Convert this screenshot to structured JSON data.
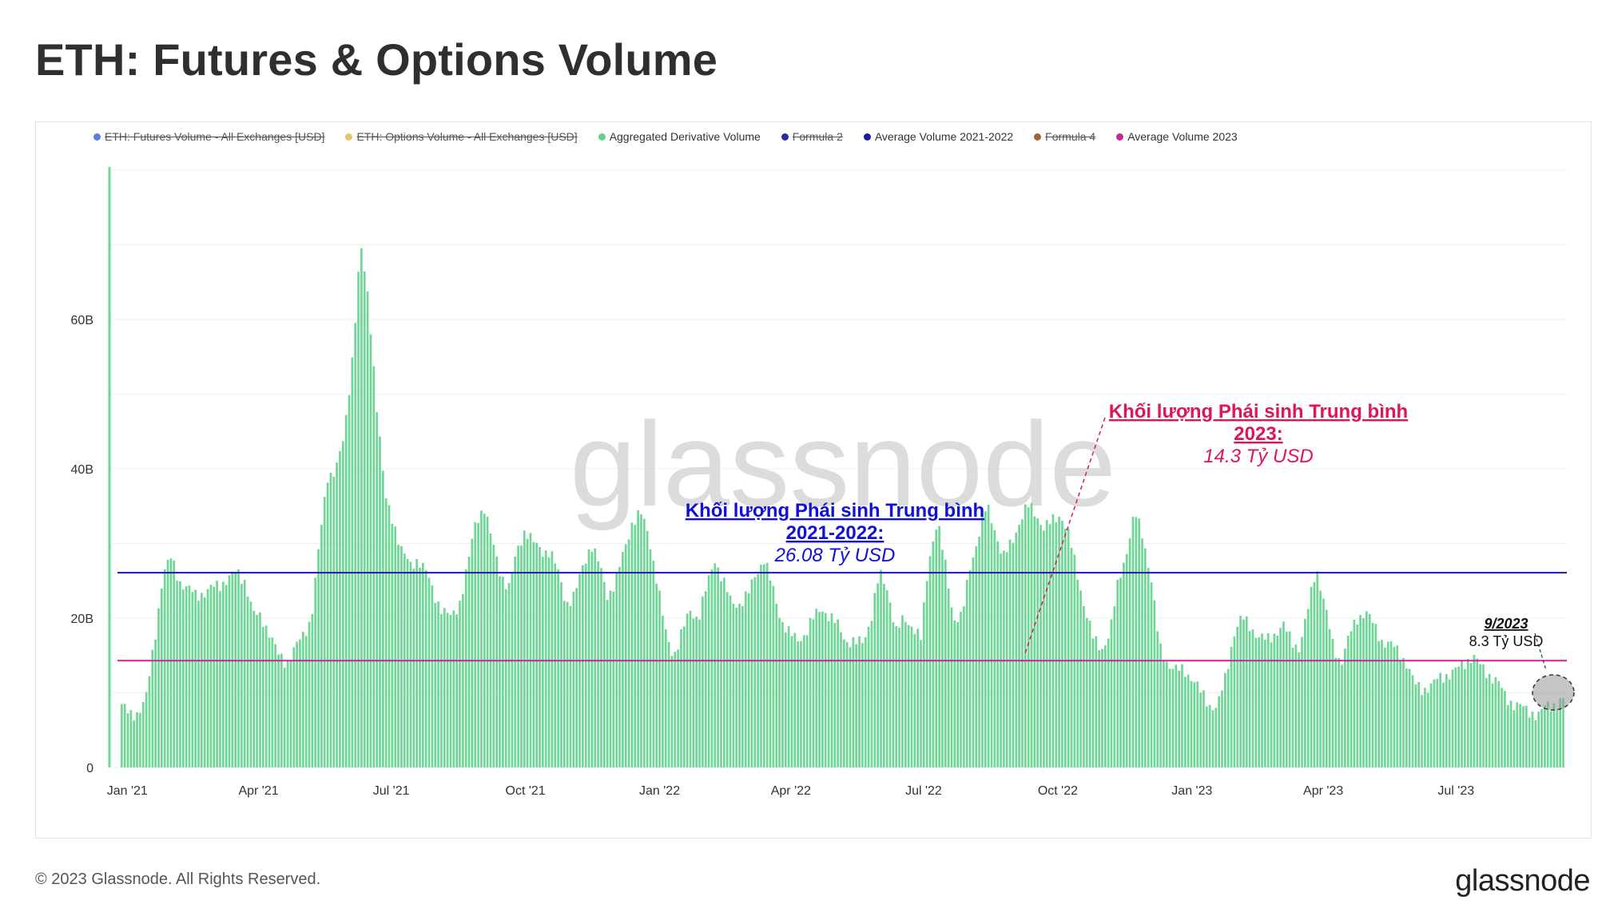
{
  "title": "ETH: Futures & Options Volume",
  "footer": "© 2023 Glassnode. All Rights Reserved.",
  "brand": "glassnode",
  "watermark": "glassnode",
  "legend": [
    {
      "label": "ETH: Futures Volume - All Exchanges [USD]",
      "color": "#5b7fd6",
      "disabled": true
    },
    {
      "label": "ETH: Options Volume - All Exchanges [USD]",
      "color": "#e8c46a",
      "disabled": true
    },
    {
      "label": "Aggregated Derivative Volume",
      "color": "#5fd38a",
      "disabled": false
    },
    {
      "label": "Formula 2",
      "color": "#2a2aa0",
      "disabled": true
    },
    {
      "label": "Average Volume 2021-2022",
      "color": "#1a1aa0",
      "disabled": false
    },
    {
      "label": "Formula 4",
      "color": "#a0643c",
      "disabled": true
    },
    {
      "label": "Average Volume 2023",
      "color": "#c4289a",
      "disabled": false
    }
  ],
  "annotations": {
    "avg2021": {
      "line1": "Khối lượng Phái sinh Trung bình",
      "line2": "2021-2022:",
      "value": "26.08 Tỷ USD",
      "color": "#1010d8"
    },
    "avg2023": {
      "line1": "Khối lượng Phái sinh Trung bình",
      "line2": "2023:",
      "value": "14.3 Tỷ USD",
      "color": "#e0145a"
    },
    "sep2023": {
      "line1": "9/2023",
      "value": "8.3 Tỷ USD"
    }
  },
  "chart_data": {
    "type": "bar",
    "ylim": [
      0,
      80
    ],
    "yticks": [
      0,
      20,
      40,
      60
    ],
    "ytick_labels": [
      "0",
      "20B",
      "40B",
      "60B"
    ],
    "xticks": [
      "Jan '21",
      "Apr '21",
      "Jul '21",
      "Oct '21",
      "Jan '22",
      "Apr '22",
      "Jul '22",
      "Oct '22",
      "Jan '23",
      "Apr '23",
      "Jul '23"
    ],
    "xlim": [
      "2020-12-22",
      "2023-09-15"
    ],
    "grid": true,
    "legend_position": "top-left",
    "series": [
      {
        "name": "Aggregated Derivative Volume",
        "color": "#6fd696",
        "resolution": "weekly",
        "x_start": "2020-12-22",
        "values": [
          8.5,
          6.8,
          7.5,
          9.5,
          17.0,
          26.0,
          28.0,
          25.0,
          24.0,
          23.0,
          23.5,
          24.0,
          24.5,
          25.5,
          26.0,
          25.0,
          20.5,
          20.0,
          18.0,
          15.0,
          14.0,
          16.0,
          17.5,
          20.0,
          30.0,
          39.0,
          40.0,
          44.0,
          55.0,
          70.0,
          62.0,
          48.0,
          36.0,
          33.0,
          29.0,
          27.0,
          28.0,
          26.0,
          23.0,
          21.0,
          20.0,
          22.0,
          27.0,
          33.0,
          35.0,
          30.0,
          26.0,
          24.0,
          29.0,
          32.0,
          30.0,
          29.0,
          29.0,
          26.0,
          22.0,
          23.0,
          27.0,
          30.0,
          27.0,
          23.0,
          25.0,
          29.0,
          33.0,
          34.0,
          31.0,
          25.0,
          18.0,
          15.0,
          18.0,
          21.0,
          20.0,
          24.0,
          28.0,
          25.0,
          22.0,
          22.0,
          23.0,
          26.0,
          28.0,
          24.0,
          20.0,
          18.0,
          17.0,
          18.0,
          20.0,
          21.5,
          20.0,
          19.0,
          17.0,
          16.5,
          17.0,
          20.0,
          26.0,
          24.0,
          18.0,
          20.0,
          19.0,
          17.0,
          28.0,
          33.0,
          27.0,
          20.0,
          20.0,
          27.0,
          31.0,
          35.0,
          32.0,
          28.0,
          30.0,
          33.0,
          35.0,
          34.0,
          32.0,
          33.0,
          34.0,
          31.0,
          26.0,
          21.0,
          17.0,
          16.0,
          18.0,
          25.0,
          29.0,
          34.0,
          31.0,
          25.0,
          16.0,
          14.0,
          13.0,
          13.0,
          12.0,
          10.0,
          8.5,
          8.0,
          12.0,
          18.0,
          20.0,
          19.0,
          17.5,
          17.0,
          18.0,
          19.0,
          17.0,
          16.0,
          21.0,
          27.0,
          22.0,
          16.5,
          14.0,
          17.5,
          20.0,
          21.0,
          19.0,
          17.0,
          16.5,
          15.5,
          14.0,
          11.0,
          10.5,
          11.0,
          12.0,
          12.5,
          13.0,
          14.0,
          15.0,
          13.5,
          12.5,
          11.5,
          9.5,
          8.5,
          8.0,
          7.5,
          7.0,
          8.3,
          8.5,
          9.0
        ]
      },
      {
        "name": "Average Volume 2021-2022",
        "color": "#1a1aa0",
        "type": "hline",
        "value": 26.08
      },
      {
        "name": "Average Volume 2023",
        "color": "#c4289a",
        "type": "hline",
        "value": 14.3
      }
    ]
  }
}
